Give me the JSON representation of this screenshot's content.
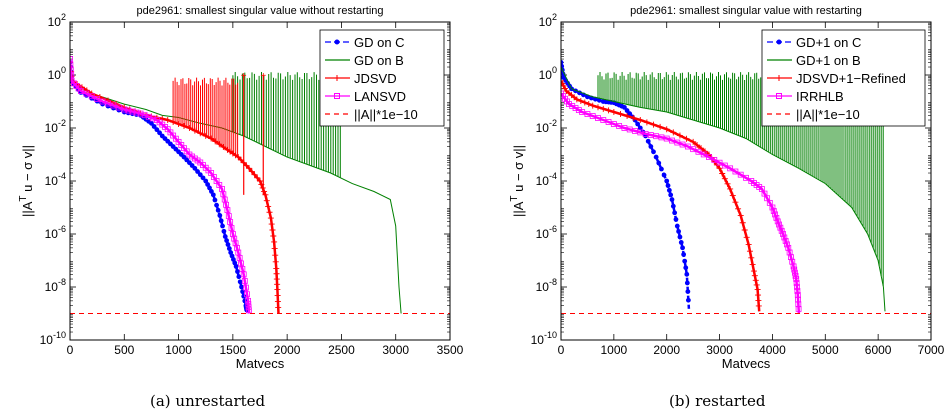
{
  "chart_data": [
    {
      "type": "line",
      "panel": "a",
      "title": "pde2961:  smallest singular value without restarting",
      "xlabel": "Matvecs",
      "ylabel": "||A^T u − σ v||",
      "xlim": [
        0,
        3500
      ],
      "xticks": [
        0,
        500,
        1000,
        1500,
        2000,
        2500,
        3000,
        3500
      ],
      "yscale": "log",
      "ylim_exp": [
        -10,
        2
      ],
      "yticks_exp": [
        -10,
        -8,
        -6,
        -4,
        -2,
        0,
        2
      ],
      "legend_position": "top-right",
      "series": [
        {
          "name": "GD on C",
          "color": "#0000ff",
          "dash": "6,3",
          "marker": "dot",
          "points": [
            [
              0,
              3
            ],
            [
              15,
              0.6
            ],
            [
              100,
              0.22
            ],
            [
              300,
              0.08
            ],
            [
              500,
              0.04
            ],
            [
              650,
              0.03
            ],
            [
              750,
              0.015
            ],
            [
              850,
              0.005
            ],
            [
              950,
              0.002
            ],
            [
              1050,
              0.0008
            ],
            [
              1150,
              0.0003
            ],
            [
              1250,
              0.0001
            ],
            [
              1320,
              3e-05
            ],
            [
              1380,
              5e-06
            ],
            [
              1430,
              8e-07
            ],
            [
              1480,
              2e-07
            ],
            [
              1530,
              6e-08
            ],
            [
              1580,
              1e-08
            ],
            [
              1620,
              2e-09
            ],
            [
              1630,
              1.2e-09
            ]
          ]
        },
        {
          "name": "GD on B",
          "color": "#008000",
          "dash": "",
          "marker": "none",
          "points": [
            [
              0,
              3
            ],
            [
              20,
              0.5
            ],
            [
              200,
              0.2
            ],
            [
              500,
              0.08
            ],
            [
              700,
              0.05
            ],
            [
              850,
              0.03
            ],
            [
              1000,
              0.025
            ],
            [
              1200,
              0.015
            ],
            [
              1400,
              0.01
            ],
            [
              1600,
              0.005
            ],
            [
              1800,
              0.002
            ],
            [
              2000,
              0.0008
            ],
            [
              2200,
              0.0004
            ],
            [
              2400,
              0.0002
            ],
            [
              2600,
              8e-05
            ],
            [
              2800,
              4e-05
            ],
            [
              2950,
              2e-05
            ],
            [
              3000,
              2e-06
            ],
            [
              3030,
              1e-08
            ],
            [
              3050,
              1e-09
            ]
          ],
          "spikes": {
            "x_start": 1500,
            "x_end": 2500,
            "step": 22,
            "top": 1.3
          }
        },
        {
          "name": "JDSVD",
          "color": "#ff0000",
          "dash": "",
          "marker": "plus",
          "points": [
            [
              0,
              3
            ],
            [
              20,
              0.6
            ],
            [
              200,
              0.2
            ],
            [
              500,
              0.06
            ],
            [
              700,
              0.03
            ],
            [
              900,
              0.02
            ],
            [
              1100,
              0.01
            ],
            [
              1300,
              0.004
            ],
            [
              1450,
              0.0015
            ],
            [
              1550,
              0.0008
            ],
            [
              1650,
              0.0003
            ],
            [
              1750,
              0.0001
            ],
            [
              1800,
              3e-05
            ],
            [
              1850,
              4e-06
            ],
            [
              1880,
              5e-07
            ],
            [
              1900,
              5e-08
            ],
            [
              1910,
              8e-09
            ],
            [
              1920,
              1e-09
            ]
          ],
          "spikes": {
            "x_start": 950,
            "x_end": 1560,
            "step": 18,
            "top": 0.8
          },
          "tall_spikes": [
            [
              1600,
              1.0
            ],
            [
              1780,
              1.0
            ]
          ]
        },
        {
          "name": "LANSVD",
          "color": "#ff00ff",
          "dash": "",
          "marker": "square",
          "points": [
            [
              0,
              4
            ],
            [
              15,
              0.6
            ],
            [
              100,
              0.25
            ],
            [
              300,
              0.1
            ],
            [
              500,
              0.05
            ],
            [
              650,
              0.035
            ],
            [
              800,
              0.02
            ],
            [
              900,
              0.009
            ],
            [
              1000,
              0.003
            ],
            [
              1100,
              0.001
            ],
            [
              1200,
              0.0005
            ],
            [
              1300,
              0.0002
            ],
            [
              1400,
              5e-05
            ],
            [
              1450,
              8e-06
            ],
            [
              1500,
              1e-06
            ],
            [
              1550,
              2e-07
            ],
            [
              1600,
              3e-08
            ],
            [
              1640,
              3e-09
            ],
            [
              1650,
              1e-09
            ]
          ]
        },
        {
          "name": "||A||*1e−10",
          "color": "#ff0000",
          "dash": "5,4",
          "marker": "none",
          "points": [
            [
              0,
              1e-09
            ],
            [
              3500,
              1e-09
            ]
          ]
        }
      ]
    },
    {
      "type": "line",
      "panel": "b",
      "title": "pde2961: smallest singular value with restarting",
      "xlabel": "Matvecs",
      "ylabel": "||A^T u − σ v||",
      "xlim": [
        0,
        7000
      ],
      "xticks": [
        0,
        1000,
        2000,
        3000,
        4000,
        5000,
        6000,
        7000
      ],
      "yscale": "log",
      "ylim_exp": [
        -10,
        2
      ],
      "yticks_exp": [
        -10,
        -8,
        -6,
        -4,
        -2,
        0,
        2
      ],
      "legend_position": "top-right",
      "series": [
        {
          "name": "GD+1 on C",
          "color": "#0000ff",
          "dash": "6,3",
          "marker": "dot",
          "points": [
            [
              0,
              3
            ],
            [
              50,
              0.8
            ],
            [
              200,
              0.3
            ],
            [
              500,
              0.15
            ],
            [
              800,
              0.1
            ],
            [
              1000,
              0.09
            ],
            [
              1200,
              0.06
            ],
            [
              1400,
              0.02
            ],
            [
              1600,
              0.005
            ],
            [
              1800,
              0.0008
            ],
            [
              2000,
              0.0001
            ],
            [
              2100,
              2e-05
            ],
            [
              2200,
              2e-06
            ],
            [
              2300,
              3e-07
            ],
            [
              2380,
              3e-08
            ],
            [
              2420,
              1.5e-09
            ]
          ]
        },
        {
          "name": "GD+1 on B",
          "color": "#008000",
          "dash": "",
          "marker": "none",
          "points": [
            [
              0,
              2
            ],
            [
              200,
              0.3
            ],
            [
              600,
              0.15
            ],
            [
              1000,
              0.1
            ],
            [
              1500,
              0.06
            ],
            [
              2000,
              0.04
            ],
            [
              2500,
              0.02
            ],
            [
              3000,
              0.01
            ],
            [
              3500,
              0.004
            ],
            [
              4000,
              0.001
            ],
            [
              4500,
              0.0003
            ],
            [
              5000,
              8e-05
            ],
            [
              5500,
              1e-05
            ],
            [
              5800,
              1e-06
            ],
            [
              6000,
              1e-07
            ],
            [
              6100,
              1e-08
            ],
            [
              6130,
              1.2e-09
            ]
          ],
          "spikes": {
            "x_start": 700,
            "x_end": 6100,
            "step": 38,
            "top": 1.3
          }
        },
        {
          "name": "JDSVD+1−Refined",
          "color": "#ff0000",
          "dash": "",
          "marker": "plus",
          "points": [
            [
              0,
              0.6
            ],
            [
              100,
              0.25
            ],
            [
              300,
              0.12
            ],
            [
              600,
              0.07
            ],
            [
              1000,
              0.04
            ],
            [
              1500,
              0.02
            ],
            [
              2000,
              0.009
            ],
            [
              2500,
              0.003
            ],
            [
              2800,
              0.001
            ],
            [
              3000,
              0.0003
            ],
            [
              3200,
              5e-05
            ],
            [
              3400,
              5e-06
            ],
            [
              3550,
              4e-07
            ],
            [
              3650,
              4e-08
            ],
            [
              3720,
              8e-09
            ],
            [
              3750,
              1.2e-09
            ]
          ]
        },
        {
          "name": "IRRHLB",
          "color": "#ff00ff",
          "dash": "",
          "marker": "square",
          "points": [
            [
              0,
              0.2
            ],
            [
              150,
              0.08
            ],
            [
              400,
              0.04
            ],
            [
              800,
              0.02
            ],
            [
              1200,
              0.01
            ],
            [
              1600,
              0.006
            ],
            [
              2000,
              0.004
            ],
            [
              2400,
              0.002
            ],
            [
              2800,
              0.0008
            ],
            [
              3200,
              0.0003
            ],
            [
              3600,
              0.0001
            ],
            [
              3800,
              5e-05
            ],
            [
              4000,
              1e-05
            ],
            [
              4100,
              3e-06
            ],
            [
              4200,
              1e-06
            ],
            [
              4300,
              3e-07
            ],
            [
              4400,
              6e-08
            ],
            [
              4450,
              2e-08
            ],
            [
              4480,
              5e-09
            ],
            [
              4500,
              1e-09
            ]
          ]
        },
        {
          "name": "||A||*1e−10",
          "color": "#ff0000",
          "dash": "5,4",
          "marker": "none",
          "points": [
            [
              0,
              1e-09
            ],
            [
              7000,
              1e-09
            ]
          ]
        }
      ]
    }
  ],
  "captions": {
    "a": "(a)  unrestarted",
    "b": "(b)  restarted"
  }
}
